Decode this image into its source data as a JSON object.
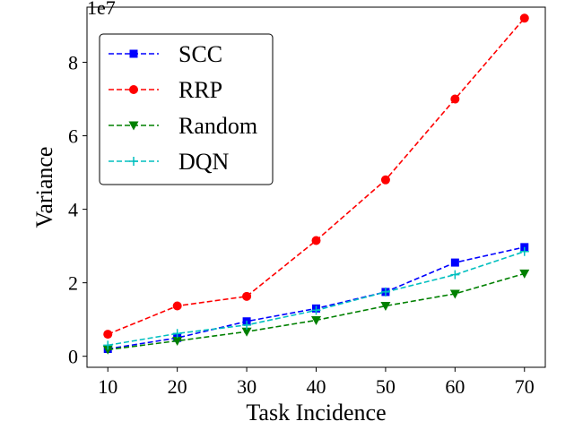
{
  "chart_data": {
    "type": "line",
    "xlabel": "Task Incidence",
    "ylabel": "Variance",
    "y_multiplier_label": "1e7",
    "y_multiplier": 10000000,
    "x": [
      10,
      20,
      30,
      40,
      50,
      60,
      70
    ],
    "xlim": [
      7,
      73
    ],
    "ylim": [
      -0.3,
      9.5
    ],
    "x_ticks": [
      "10",
      "20",
      "30",
      "40",
      "50",
      "60",
      "70"
    ],
    "y_ticks": [
      "0",
      "2",
      "4",
      "6",
      "8"
    ],
    "y_tick_values": [
      0,
      2,
      4,
      6,
      8
    ],
    "grid": false,
    "legend_position": "top-left",
    "series": [
      {
        "name": "SCC",
        "color": "#0000ff",
        "marker": "square",
        "values": [
          0.2,
          0.5,
          0.95,
          1.3,
          1.75,
          2.55,
          2.97
        ]
      },
      {
        "name": "RRP",
        "color": "#ff0000",
        "marker": "circle",
        "values": [
          0.6,
          1.37,
          1.63,
          3.15,
          4.8,
          7.0,
          9.2
        ]
      },
      {
        "name": "Random",
        "color": "#008000",
        "marker": "triangle-down",
        "values": [
          0.18,
          0.42,
          0.67,
          0.98,
          1.37,
          1.7,
          2.25
        ]
      },
      {
        "name": "DQN",
        "color": "#00bfbf",
        "marker": "plus",
        "values": [
          0.3,
          0.62,
          0.85,
          1.25,
          1.75,
          2.22,
          2.85
        ]
      }
    ]
  }
}
